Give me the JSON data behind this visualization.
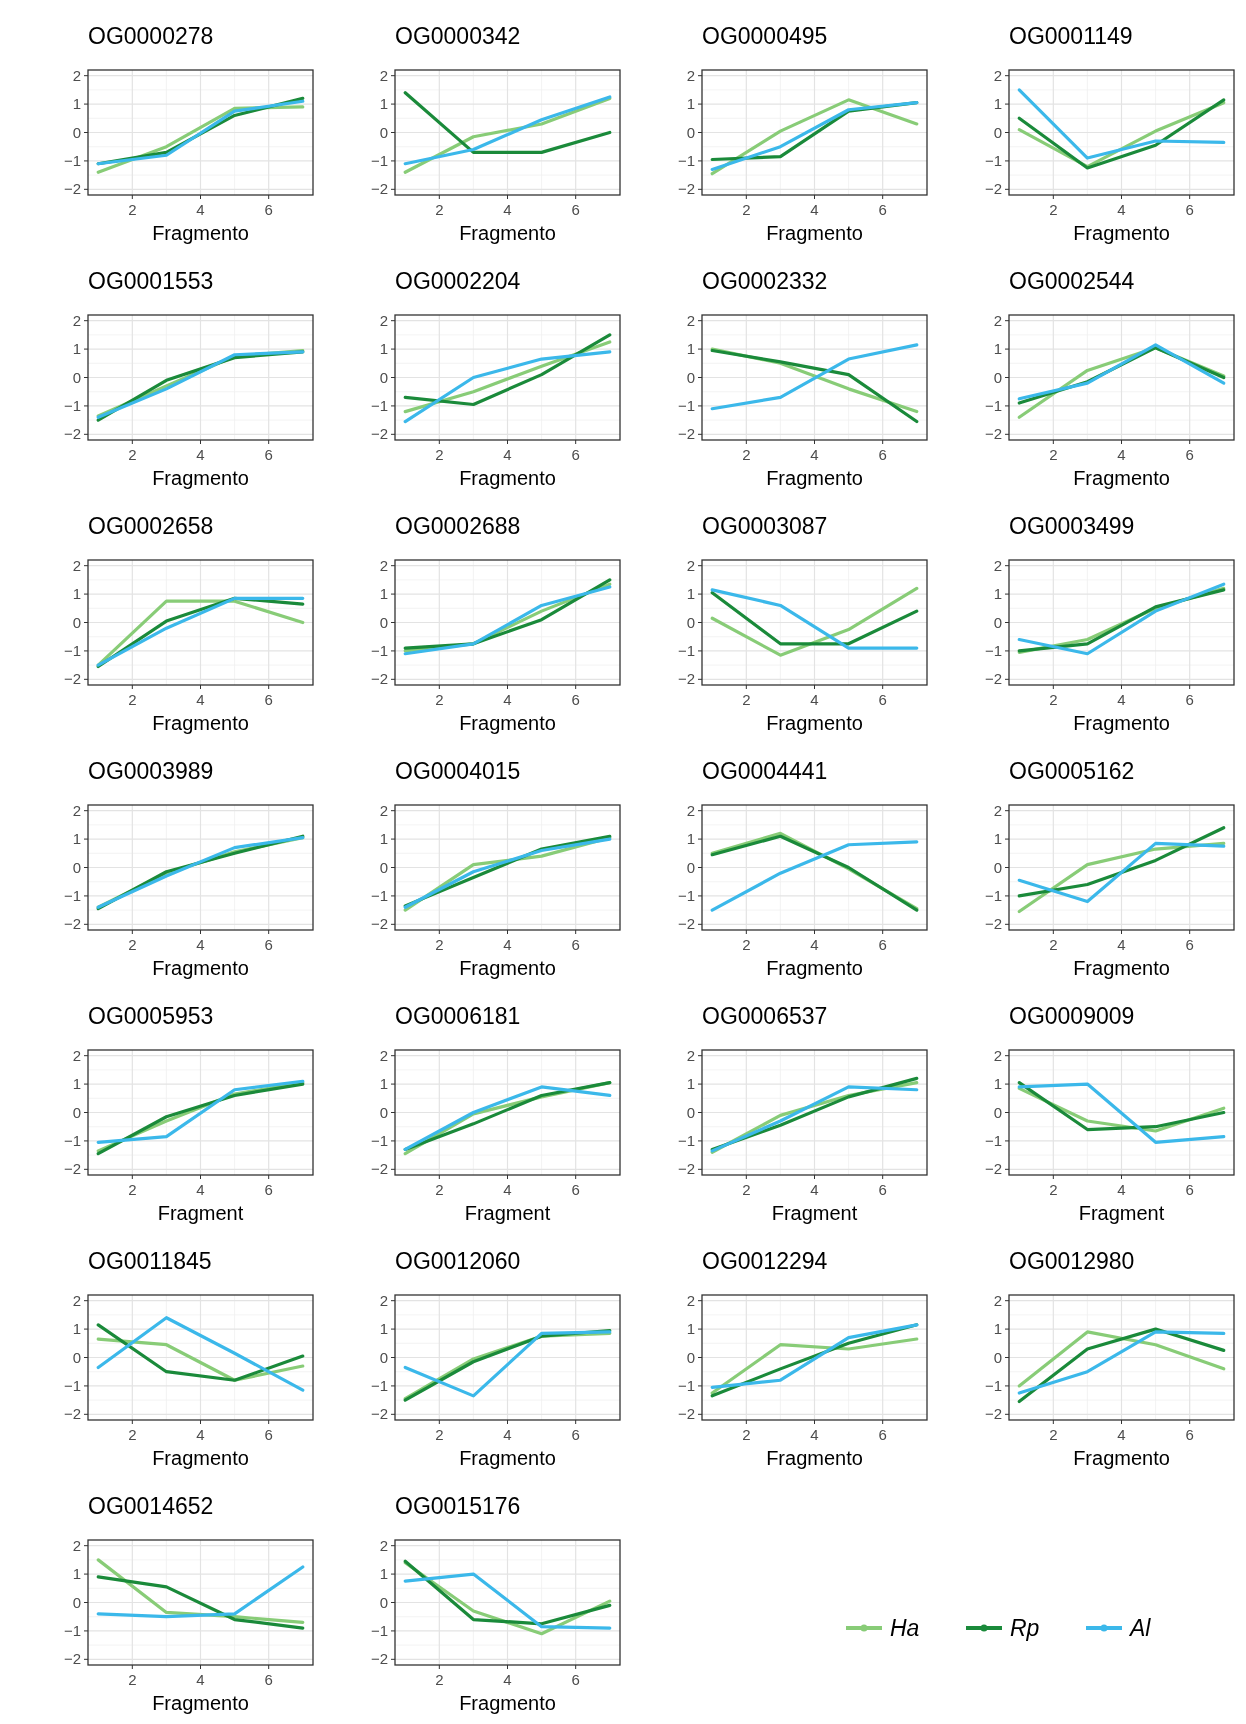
{
  "chart_data": [
    {
      "type": "line",
      "title": "OG0000278",
      "xlabel": "Fragmento",
      "x": [
        1,
        3,
        5,
        7
      ],
      "xlim": [
        0.7,
        7.3
      ],
      "xticks": [
        2,
        4,
        6
      ],
      "ylim": [
        -2.2,
        2.2
      ],
      "yticks": [
        -2,
        -1,
        0,
        1,
        2
      ],
      "grid": true,
      "series": [
        {
          "color": "#88cc77",
          "values": [
            -1.4,
            -0.5,
            0.85,
            0.9
          ]
        },
        {
          "color": "#1a8a3a",
          "values": [
            -1.1,
            -0.7,
            0.6,
            1.2
          ]
        },
        {
          "color": "#3bb8ea",
          "values": [
            -1.1,
            -0.8,
            0.75,
            1.1
          ]
        }
      ]
    },
    {
      "type": "line",
      "title": "OG0000342",
      "xlabel": "Fragmento",
      "x": [
        1,
        3,
        5,
        7
      ],
      "xlim": [
        0.7,
        7.3
      ],
      "xticks": [
        2,
        4,
        6
      ],
      "ylim": [
        -2.2,
        2.2
      ],
      "yticks": [
        -2,
        -1,
        0,
        1,
        2
      ],
      "grid": true,
      "series": [
        {
          "color": "#88cc77",
          "values": [
            -1.4,
            -0.15,
            0.3,
            1.2
          ]
        },
        {
          "color": "#1a8a3a",
          "values": [
            1.4,
            -0.7,
            -0.7,
            0
          ]
        },
        {
          "color": "#3bb8ea",
          "values": [
            -1.1,
            -0.6,
            0.45,
            1.25
          ]
        }
      ]
    },
    {
      "type": "line",
      "title": "OG0000495",
      "xlabel": "Fragmento",
      "x": [
        1,
        3,
        5,
        7
      ],
      "xlim": [
        0.7,
        7.3
      ],
      "xticks": [
        2,
        4,
        6
      ],
      "ylim": [
        -2.2,
        2.2
      ],
      "yticks": [
        -2,
        -1,
        0,
        1,
        2
      ],
      "grid": true,
      "series": [
        {
          "color": "#88cc77",
          "values": [
            -1.45,
            0.05,
            1.15,
            0.3
          ]
        },
        {
          "color": "#1a8a3a",
          "values": [
            -0.95,
            -0.85,
            0.75,
            1.05
          ]
        },
        {
          "color": "#3bb8ea",
          "values": [
            -1.3,
            -0.5,
            0.8,
            1.05
          ]
        }
      ]
    },
    {
      "type": "line",
      "title": "OG0001149",
      "xlabel": "Fragmento",
      "x": [
        1,
        3,
        5,
        7
      ],
      "xlim": [
        0.7,
        7.3
      ],
      "xticks": [
        2,
        4,
        6
      ],
      "ylim": [
        -2.2,
        2.2
      ],
      "yticks": [
        -2,
        -1,
        0,
        1,
        2
      ],
      "grid": true,
      "series": [
        {
          "color": "#88cc77",
          "values": [
            0.1,
            -1.2,
            0.05,
            1.05
          ]
        },
        {
          "color": "#1a8a3a",
          "values": [
            0.5,
            -1.25,
            -0.45,
            1.15
          ]
        },
        {
          "color": "#3bb8ea",
          "values": [
            1.5,
            -0.9,
            -0.3,
            -0.35
          ]
        }
      ]
    },
    {
      "type": "line",
      "title": "OG0001553",
      "xlabel": "Fragmento",
      "x": [
        1,
        3,
        5,
        7
      ],
      "xlim": [
        0.7,
        7.3
      ],
      "xticks": [
        2,
        4,
        6
      ],
      "ylim": [
        -2.2,
        2.2
      ],
      "yticks": [
        -2,
        -1,
        0,
        1,
        2
      ],
      "grid": true,
      "series": [
        {
          "color": "#88cc77",
          "values": [
            -1.35,
            -0.3,
            0.75,
            0.95
          ]
        },
        {
          "color": "#1a8a3a",
          "values": [
            -1.5,
            -0.1,
            0.7,
            0.9
          ]
        },
        {
          "color": "#3bb8ea",
          "values": [
            -1.4,
            -0.4,
            0.8,
            0.9
          ]
        }
      ]
    },
    {
      "type": "line",
      "title": "OG0002204",
      "xlabel": "Fragmento",
      "x": [
        1,
        3,
        5,
        7
      ],
      "xlim": [
        0.7,
        7.3
      ],
      "xticks": [
        2,
        4,
        6
      ],
      "ylim": [
        -2.2,
        2.2
      ],
      "yticks": [
        -2,
        -1,
        0,
        1,
        2
      ],
      "grid": true,
      "series": [
        {
          "color": "#88cc77",
          "values": [
            -1.2,
            -0.5,
            0.4,
            1.25
          ]
        },
        {
          "color": "#1a8a3a",
          "values": [
            -0.7,
            -0.95,
            0.1,
            1.5
          ]
        },
        {
          "color": "#3bb8ea",
          "values": [
            -1.55,
            0,
            0.65,
            0.9
          ]
        }
      ]
    },
    {
      "type": "line",
      "title": "OG0002332",
      "xlabel": "Fragmento",
      "x": [
        1,
        3,
        5,
        7
      ],
      "xlim": [
        0.7,
        7.3
      ],
      "xticks": [
        2,
        4,
        6
      ],
      "ylim": [
        -2.2,
        2.2
      ],
      "yticks": [
        -2,
        -1,
        0,
        1,
        2
      ],
      "grid": true,
      "series": [
        {
          "color": "#88cc77",
          "values": [
            1.0,
            0.5,
            -0.4,
            -1.2
          ]
        },
        {
          "color": "#1a8a3a",
          "values": [
            0.95,
            0.55,
            0.1,
            -1.55
          ]
        },
        {
          "color": "#3bb8ea",
          "values": [
            -1.1,
            -0.7,
            0.65,
            1.15
          ]
        }
      ]
    },
    {
      "type": "line",
      "title": "OG0002544",
      "xlabel": "Fragmento",
      "x": [
        1,
        3,
        5,
        7
      ],
      "xlim": [
        0.7,
        7.3
      ],
      "xticks": [
        2,
        4,
        6
      ],
      "ylim": [
        -2.2,
        2.2
      ],
      "yticks": [
        -2,
        -1,
        0,
        1,
        2
      ],
      "grid": true,
      "series": [
        {
          "color": "#88cc77",
          "values": [
            -1.4,
            0.25,
            1.05,
            0.05
          ]
        },
        {
          "color": "#1a8a3a",
          "values": [
            -0.9,
            -0.15,
            1.05,
            0.0
          ]
        },
        {
          "color": "#3bb8ea",
          "values": [
            -0.75,
            -0.2,
            1.15,
            -0.2
          ]
        }
      ]
    },
    {
      "type": "line",
      "title": "OG0002658",
      "xlabel": "Fragmento",
      "x": [
        1,
        3,
        5,
        7
      ],
      "xlim": [
        0.7,
        7.3
      ],
      "xticks": [
        2,
        4,
        6
      ],
      "ylim": [
        -2.2,
        2.2
      ],
      "yticks": [
        -2,
        -1,
        0,
        1,
        2
      ],
      "grid": true,
      "series": [
        {
          "color": "#88cc77",
          "values": [
            -1.5,
            0.75,
            0.75,
            0.0
          ]
        },
        {
          "color": "#1a8a3a",
          "values": [
            -1.55,
            0.05,
            0.85,
            0.65
          ]
        },
        {
          "color": "#3bb8ea",
          "values": [
            -1.5,
            -0.2,
            0.85,
            0.85
          ]
        }
      ]
    },
    {
      "type": "line",
      "title": "OG0002688",
      "xlabel": "Fragmento",
      "x": [
        1,
        3,
        5,
        7
      ],
      "xlim": [
        0.7,
        7.3
      ],
      "xticks": [
        2,
        4,
        6
      ],
      "ylim": [
        -2.2,
        2.2
      ],
      "yticks": [
        -2,
        -1,
        0,
        1,
        2
      ],
      "grid": true,
      "series": [
        {
          "color": "#88cc77",
          "values": [
            -1.0,
            -0.75,
            0.4,
            1.35
          ]
        },
        {
          "color": "#1a8a3a",
          "values": [
            -0.9,
            -0.75,
            0.1,
            1.5
          ]
        },
        {
          "color": "#3bb8ea",
          "values": [
            -1.1,
            -0.75,
            0.6,
            1.25
          ]
        }
      ]
    },
    {
      "type": "line",
      "title": "OG0003087",
      "xlabel": "Fragmento",
      "x": [
        1,
        3,
        5,
        7
      ],
      "xlim": [
        0.7,
        7.3
      ],
      "xticks": [
        2,
        4,
        6
      ],
      "ylim": [
        -2.2,
        2.2
      ],
      "yticks": [
        -2,
        -1,
        0,
        1,
        2
      ],
      "grid": true,
      "series": [
        {
          "color": "#88cc77",
          "values": [
            0.15,
            -1.15,
            -0.25,
            1.2
          ]
        },
        {
          "color": "#1a8a3a",
          "values": [
            1.05,
            -0.75,
            -0.75,
            0.4
          ]
        },
        {
          "color": "#3bb8ea",
          "values": [
            1.15,
            0.6,
            -0.9,
            -0.9
          ]
        }
      ]
    },
    {
      "type": "line",
      "title": "OG0003499",
      "xlabel": "Fragmento",
      "x": [
        1,
        3,
        5,
        7
      ],
      "xlim": [
        0.7,
        7.3
      ],
      "xticks": [
        2,
        4,
        6
      ],
      "ylim": [
        -2.2,
        2.2
      ],
      "yticks": [
        -2,
        -1,
        0,
        1,
        2
      ],
      "grid": true,
      "series": [
        {
          "color": "#88cc77",
          "values": [
            -1.05,
            -0.6,
            0.5,
            1.2
          ]
        },
        {
          "color": "#1a8a3a",
          "values": [
            -1.0,
            -0.75,
            0.55,
            1.15
          ]
        },
        {
          "color": "#3bb8ea",
          "values": [
            -0.6,
            -1.1,
            0.4,
            1.35
          ]
        }
      ]
    },
    {
      "type": "line",
      "title": "OG0003989",
      "xlabel": "Fragmento",
      "x": [
        1,
        3,
        5,
        7
      ],
      "xlim": [
        0.7,
        7.3
      ],
      "xticks": [
        2,
        4,
        6
      ],
      "ylim": [
        -2.2,
        2.2
      ],
      "yticks": [
        -2,
        -1,
        0,
        1,
        2
      ],
      "grid": true,
      "series": [
        {
          "color": "#88cc77",
          "values": [
            -1.4,
            -0.2,
            0.55,
            1.05
          ]
        },
        {
          "color": "#1a8a3a",
          "values": [
            -1.45,
            -0.15,
            0.5,
            1.1
          ]
        },
        {
          "color": "#3bb8ea",
          "values": [
            -1.4,
            -0.3,
            0.7,
            1.05
          ]
        }
      ]
    },
    {
      "type": "line",
      "title": "OG0004015",
      "xlabel": "Fragmento",
      "x": [
        1,
        3,
        5,
        7
      ],
      "xlim": [
        0.7,
        7.3
      ],
      "xticks": [
        2,
        4,
        6
      ],
      "ylim": [
        -2.2,
        2.2
      ],
      "yticks": [
        -2,
        -1,
        0,
        1,
        2
      ],
      "grid": true,
      "series": [
        {
          "color": "#88cc77",
          "values": [
            -1.5,
            0.1,
            0.4,
            1.05
          ]
        },
        {
          "color": "#1a8a3a",
          "values": [
            -1.35,
            -0.35,
            0.65,
            1.1
          ]
        },
        {
          "color": "#3bb8ea",
          "values": [
            -1.4,
            -0.15,
            0.6,
            1.0
          ]
        }
      ]
    },
    {
      "type": "line",
      "title": "OG0004441",
      "xlabel": "Fragmento",
      "x": [
        1,
        3,
        5,
        7
      ],
      "xlim": [
        0.7,
        7.3
      ],
      "xticks": [
        2,
        4,
        6
      ],
      "ylim": [
        -2.2,
        2.2
      ],
      "yticks": [
        -2,
        -1,
        0,
        1,
        2
      ],
      "grid": true,
      "series": [
        {
          "color": "#88cc77",
          "values": [
            0.5,
            1.2,
            -0.05,
            -1.45
          ]
        },
        {
          "color": "#1a8a3a",
          "values": [
            0.45,
            1.1,
            0,
            -1.5
          ]
        },
        {
          "color": "#3bb8ea",
          "values": [
            -1.5,
            -0.2,
            0.8,
            0.9
          ]
        }
      ]
    },
    {
      "type": "line",
      "title": "OG0005162",
      "xlabel": "Fragmento",
      "x": [
        1,
        3,
        5,
        7
      ],
      "xlim": [
        0.7,
        7.3
      ],
      "xticks": [
        2,
        4,
        6
      ],
      "ylim": [
        -2.2,
        2.2
      ],
      "yticks": [
        -2,
        -1,
        0,
        1,
        2
      ],
      "grid": true,
      "series": [
        {
          "color": "#88cc77",
          "values": [
            -1.55,
            0.1,
            0.65,
            0.85
          ]
        },
        {
          "color": "#1a8a3a",
          "values": [
            -1.0,
            -0.6,
            0.25,
            1.4
          ]
        },
        {
          "color": "#3bb8ea",
          "values": [
            -0.45,
            -1.2,
            0.85,
            0.75
          ]
        }
      ]
    },
    {
      "type": "line",
      "title": "OG0005953",
      "xlabel": "Fragment",
      "x": [
        1,
        3,
        5,
        7
      ],
      "xlim": [
        0.7,
        7.3
      ],
      "xticks": [
        2,
        4,
        6
      ],
      "ylim": [
        -2.2,
        2.2
      ],
      "yticks": [
        -2,
        -1,
        0,
        1,
        2
      ],
      "grid": true,
      "series": [
        {
          "color": "#88cc77",
          "values": [
            -1.35,
            -0.3,
            0.65,
            1.05
          ]
        },
        {
          "color": "#1a8a3a",
          "values": [
            -1.45,
            -0.15,
            0.6,
            1.0
          ]
        },
        {
          "color": "#3bb8ea",
          "values": [
            -1.05,
            -0.85,
            0.8,
            1.1
          ]
        }
      ]
    },
    {
      "type": "line",
      "title": "OG0006181",
      "xlabel": "Fragment",
      "x": [
        1,
        3,
        5,
        7
      ],
      "xlim": [
        0.7,
        7.3
      ],
      "xticks": [
        2,
        4,
        6
      ],
      "ylim": [
        -2.2,
        2.2
      ],
      "yticks": [
        -2,
        -1,
        0,
        1,
        2
      ],
      "grid": true,
      "series": [
        {
          "color": "#88cc77",
          "values": [
            -1.45,
            -0.05,
            0.55,
            1.05
          ]
        },
        {
          "color": "#1a8a3a",
          "values": [
            -1.3,
            -0.4,
            0.6,
            1.05
          ]
        },
        {
          "color": "#3bb8ea",
          "values": [
            -1.3,
            0.0,
            0.9,
            0.6
          ]
        }
      ]
    },
    {
      "type": "line",
      "title": "OG0006537",
      "xlabel": "Fragment",
      "x": [
        1,
        3,
        5,
        7
      ],
      "xlim": [
        0.7,
        7.3
      ],
      "xticks": [
        2,
        4,
        6
      ],
      "ylim": [
        -2.2,
        2.2
      ],
      "yticks": [
        -2,
        -1,
        0,
        1,
        2
      ],
      "grid": true,
      "series": [
        {
          "color": "#88cc77",
          "values": [
            -1.4,
            -0.1,
            0.6,
            1.05
          ]
        },
        {
          "color": "#1a8a3a",
          "values": [
            -1.3,
            -0.45,
            0.55,
            1.2
          ]
        },
        {
          "color": "#3bb8ea",
          "values": [
            -1.35,
            -0.3,
            0.9,
            0.8
          ]
        }
      ]
    },
    {
      "type": "line",
      "title": "OG0009009",
      "xlabel": "Fragment",
      "x": [
        1,
        3,
        5,
        7
      ],
      "xlim": [
        0.7,
        7.3
      ],
      "xticks": [
        2,
        4,
        6
      ],
      "ylim": [
        -2.2,
        2.2
      ],
      "yticks": [
        -2,
        -1,
        0,
        1,
        2
      ],
      "grid": true,
      "series": [
        {
          "color": "#88cc77",
          "values": [
            0.85,
            -0.3,
            -0.65,
            0.15
          ]
        },
        {
          "color": "#1a8a3a",
          "values": [
            1.05,
            -0.6,
            -0.5,
            0.0
          ]
        },
        {
          "color": "#3bb8ea",
          "values": [
            0.9,
            1.0,
            -1.05,
            -0.85
          ]
        }
      ]
    },
    {
      "type": "line",
      "title": "OG0011845",
      "xlabel": "Fragmento",
      "x": [
        1,
        3,
        5,
        7
      ],
      "xlim": [
        0.7,
        7.3
      ],
      "xticks": [
        2,
        4,
        6
      ],
      "ylim": [
        -2.2,
        2.2
      ],
      "yticks": [
        -2,
        -1,
        0,
        1,
        2
      ],
      "grid": true,
      "series": [
        {
          "color": "#88cc77",
          "values": [
            0.65,
            0.45,
            -0.8,
            -0.3
          ]
        },
        {
          "color": "#1a8a3a",
          "values": [
            1.15,
            -0.5,
            -0.8,
            0.05
          ]
        },
        {
          "color": "#3bb8ea",
          "values": [
            -0.35,
            1.4,
            0.15,
            -1.15
          ]
        }
      ]
    },
    {
      "type": "line",
      "title": "OG0012060",
      "xlabel": "Fragmento",
      "x": [
        1,
        3,
        5,
        7
      ],
      "xlim": [
        0.7,
        7.3
      ],
      "xticks": [
        2,
        4,
        6
      ],
      "ylim": [
        -2.2,
        2.2
      ],
      "yticks": [
        -2,
        -1,
        0,
        1,
        2
      ],
      "grid": true,
      "series": [
        {
          "color": "#88cc77",
          "values": [
            -1.45,
            -0.05,
            0.75,
            0.85
          ]
        },
        {
          "color": "#1a8a3a",
          "values": [
            -1.5,
            -0.15,
            0.75,
            0.95
          ]
        },
        {
          "color": "#3bb8ea",
          "values": [
            -0.35,
            -1.35,
            0.85,
            0.9
          ]
        }
      ]
    },
    {
      "type": "line",
      "title": "OG0012294",
      "xlabel": "Fragmento",
      "x": [
        1,
        3,
        5,
        7
      ],
      "xlim": [
        0.7,
        7.3
      ],
      "xticks": [
        2,
        4,
        6
      ],
      "ylim": [
        -2.2,
        2.2
      ],
      "yticks": [
        -2,
        -1,
        0,
        1,
        2
      ],
      "grid": true,
      "series": [
        {
          "color": "#88cc77",
          "values": [
            -1.25,
            0.45,
            0.3,
            0.65
          ]
        },
        {
          "color": "#1a8a3a",
          "values": [
            -1.35,
            -0.4,
            0.5,
            1.15
          ]
        },
        {
          "color": "#3bb8ea",
          "values": [
            -1.05,
            -0.8,
            0.7,
            1.15
          ]
        }
      ]
    },
    {
      "type": "line",
      "title": "OG0012980",
      "xlabel": "Fragmento",
      "x": [
        1,
        3,
        5,
        7
      ],
      "xlim": [
        0.7,
        7.3
      ],
      "xticks": [
        2,
        4,
        6
      ],
      "ylim": [
        -2.2,
        2.2
      ],
      "yticks": [
        -2,
        -1,
        0,
        1,
        2
      ],
      "grid": true,
      "series": [
        {
          "color": "#88cc77",
          "values": [
            -1.0,
            0.9,
            0.45,
            -0.4
          ]
        },
        {
          "color": "#1a8a3a",
          "values": [
            -1.55,
            0.3,
            1.0,
            0.25
          ]
        },
        {
          "color": "#3bb8ea",
          "values": [
            -1.25,
            -0.5,
            0.9,
            0.85
          ]
        }
      ]
    },
    {
      "type": "line",
      "title": "OG0014652",
      "xlabel": "Fragmento",
      "x": [
        1,
        3,
        5,
        7
      ],
      "xlim": [
        0.7,
        7.3
      ],
      "xticks": [
        2,
        4,
        6
      ],
      "ylim": [
        -2.2,
        2.2
      ],
      "yticks": [
        -2,
        -1,
        0,
        1,
        2
      ],
      "grid": true,
      "series": [
        {
          "color": "#88cc77",
          "values": [
            1.5,
            -0.35,
            -0.5,
            -0.7
          ]
        },
        {
          "color": "#1a8a3a",
          "values": [
            0.9,
            0.55,
            -0.6,
            -0.9
          ]
        },
        {
          "color": "#3bb8ea",
          "values": [
            -0.4,
            -0.5,
            -0.4,
            1.25
          ]
        }
      ]
    },
    {
      "type": "line",
      "title": "OG0015176",
      "xlabel": "Fragmento",
      "x": [
        1,
        3,
        5,
        7
      ],
      "xlim": [
        0.7,
        7.3
      ],
      "xticks": [
        2,
        4,
        6
      ],
      "ylim": [
        -2.2,
        2.2
      ],
      "yticks": [
        -2,
        -1,
        0,
        1,
        2
      ],
      "grid": true,
      "legend": "bottom right",
      "series": [
        {
          "name": "Ha",
          "color": "#88cc77",
          "values": [
            1.4,
            -0.3,
            -1.1,
            0.05
          ]
        },
        {
          "name": "Rp",
          "color": "#1a8a3a",
          "values": [
            1.45,
            -0.6,
            -0.75,
            -0.1
          ]
        },
        {
          "name": "Al",
          "color": "#3bb8ea",
          "values": [
            0.75,
            1.0,
            -0.85,
            -0.9
          ]
        }
      ]
    }
  ]
}
